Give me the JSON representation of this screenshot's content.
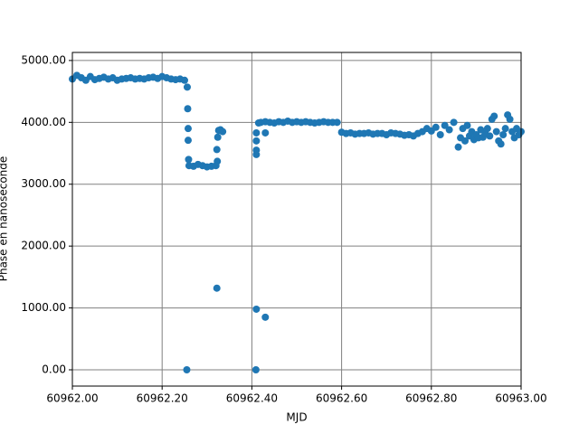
{
  "chart_data": {
    "type": "scatter",
    "x_label": "MJD",
    "y_label": "Phase en nanoseconde",
    "color": "#1f77b4",
    "grid": true,
    "xlim": [
      60962.0,
      60963.0
    ],
    "ylim": [
      -263,
      5130
    ],
    "xticks": [
      {
        "value": 60962.0,
        "label": "60962.00"
      },
      {
        "value": 60962.2,
        "label": "60962.20"
      },
      {
        "value": 60962.4,
        "label": "60962.40"
      },
      {
        "value": 60962.6,
        "label": "60962.60"
      },
      {
        "value": 60962.8,
        "label": "60962.80"
      },
      {
        "value": 60963.0,
        "label": "60963.00"
      }
    ],
    "yticks": [
      {
        "value": 0,
        "label": "0.00"
      },
      {
        "value": 1000,
        "label": "1000.00"
      },
      {
        "value": 2000,
        "label": "2000.00"
      },
      {
        "value": 3000,
        "label": "3000.00"
      },
      {
        "value": 4000,
        "label": "4000.00"
      },
      {
        "value": 5000,
        "label": "5000.00"
      }
    ],
    "x": [
      60962.0,
      60962.01,
      60962.02,
      60962.03,
      60962.04,
      60962.05,
      60962.06,
      60962.07,
      60962.08,
      60962.09,
      60962.1,
      60962.11,
      60962.12,
      60962.13,
      60962.14,
      60962.15,
      60962.16,
      60962.17,
      60962.18,
      60962.19,
      60962.2,
      60962.21,
      60962.22,
      60962.23,
      60962.24,
      60962.25,
      60962.255,
      60962.256,
      60962.257,
      60962.258,
      60962.258,
      60962.259,
      60962.26,
      60962.27,
      60962.28,
      60962.29,
      60962.3,
      60962.31,
      60962.32,
      60962.322,
      60962.322,
      60962.323,
      60962.324,
      60962.326,
      60962.33,
      60962.335,
      60962.409,
      60962.41,
      60962.41,
      60962.41,
      60962.41,
      60962.41,
      60962.415,
      60962.43,
      60962.43,
      60962.42,
      60962.43,
      60962.44,
      60962.45,
      60962.46,
      60962.47,
      60962.48,
      60962.49,
      60962.5,
      60962.51,
      60962.52,
      60962.53,
      60962.54,
      60962.55,
      60962.56,
      60962.57,
      60962.58,
      60962.59,
      60962.6,
      60962.61,
      60962.62,
      60962.63,
      60962.64,
      60962.65,
      60962.66,
      60962.67,
      60962.68,
      60962.69,
      60962.7,
      60962.71,
      60962.72,
      60962.73,
      60962.74,
      60962.75,
      60962.76,
      60962.77,
      60962.78,
      60962.79,
      60962.8,
      60962.81,
      60962.82,
      60962.83,
      60962.84,
      60962.85,
      60962.86,
      60962.865,
      60962.87,
      60962.875,
      60962.88,
      60962.885,
      60962.89,
      60962.895,
      60962.9,
      60962.905,
      60962.91,
      60962.915,
      60962.92,
      60962.925,
      60962.93,
      60962.935,
      60962.94,
      60962.945,
      60962.95,
      60962.955,
      60962.96,
      60962.965,
      60962.97,
      60962.975,
      60962.98,
      60962.985,
      60962.99,
      60962.995,
      60963.0
    ],
    "values": [
      4700,
      4760,
      4720,
      4680,
      4740,
      4690,
      4710,
      4730,
      4700,
      4720,
      4680,
      4700,
      4710,
      4720,
      4700,
      4710,
      4700,
      4720,
      4730,
      4710,
      4740,
      4720,
      4700,
      4690,
      4700,
      4680,
      0,
      4570,
      4220,
      3900,
      3710,
      3400,
      3300,
      3290,
      3320,
      3300,
      3280,
      3290,
      3300,
      1320,
      3560,
      3370,
      3760,
      3870,
      3880,
      3850,
      0,
      980,
      3480,
      3550,
      3700,
      3830,
      3990,
      850,
      3830,
      4000,
      4010,
      4000,
      3990,
      4010,
      4000,
      4020,
      4000,
      4010,
      4000,
      4010,
      4000,
      3990,
      4000,
      4010,
      4000,
      4000,
      4000,
      3840,
      3820,
      3830,
      3810,
      3820,
      3820,
      3830,
      3810,
      3820,
      3820,
      3800,
      3830,
      3820,
      3810,
      3790,
      3800,
      3780,
      3820,
      3850,
      3900,
      3860,
      3920,
      3800,
      3950,
      3880,
      4000,
      3600,
      3750,
      3900,
      3700,
      3950,
      3780,
      3850,
      3720,
      3800,
      3750,
      3880,
      3760,
      3820,
      3900,
      3780,
      4050,
      4100,
      3850,
      3700,
      3650,
      3800,
      3900,
      4120,
      4050,
      3850,
      3750,
      3900,
      3800,
      3850
    ]
  }
}
